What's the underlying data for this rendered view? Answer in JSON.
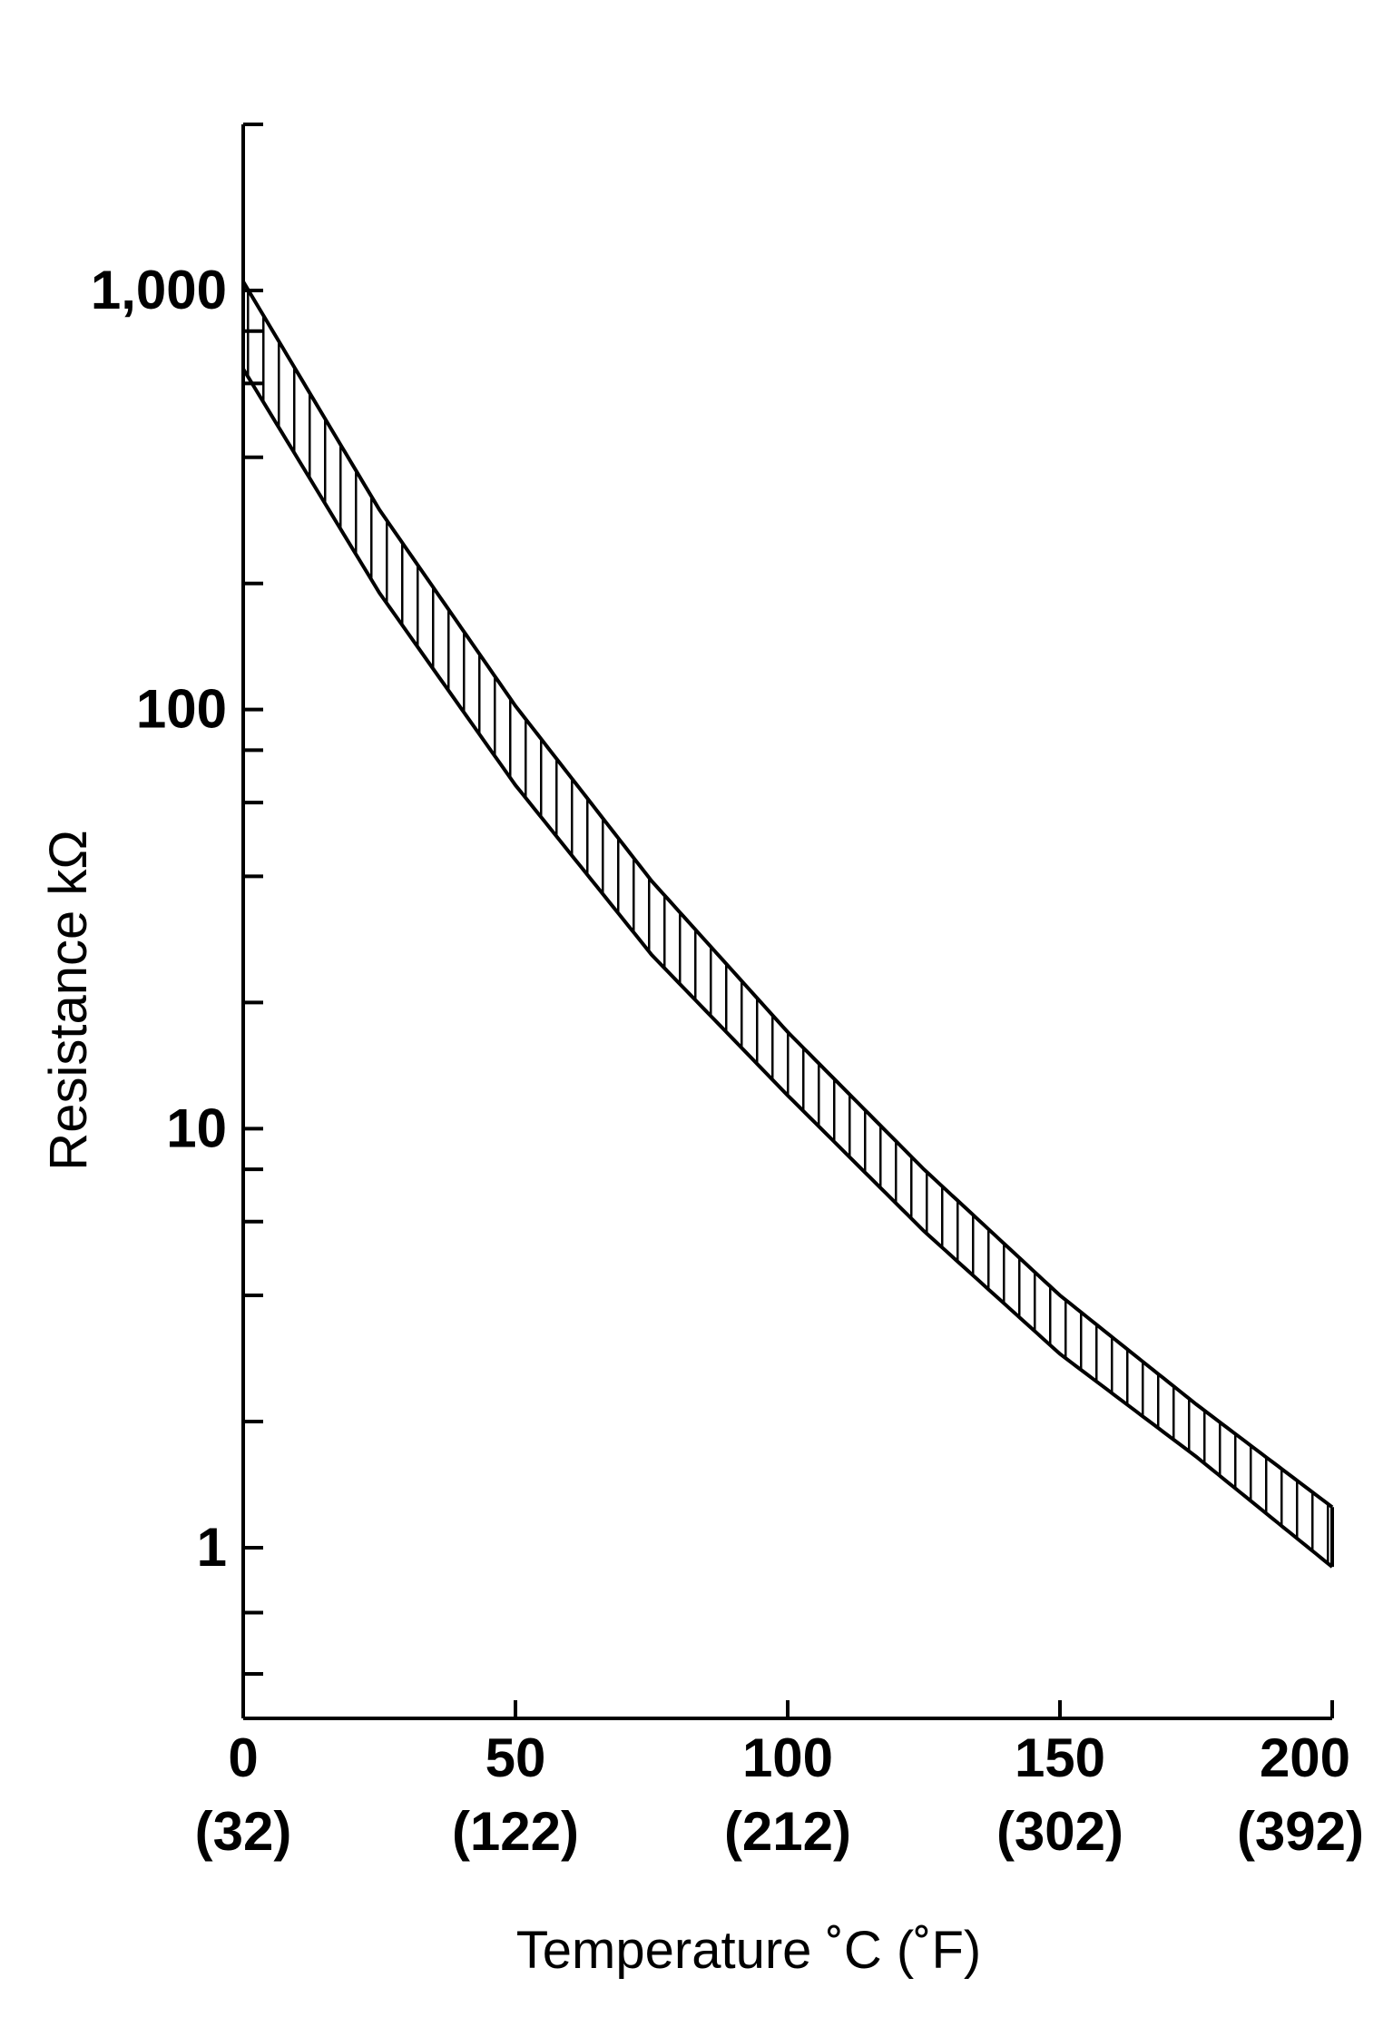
{
  "chart_data": {
    "type": "area",
    "title": "",
    "xlabel": "Temperature ˚C  (˚F)",
    "ylabel": "Resistance kΩ",
    "xlim": [
      0,
      200
    ],
    "ylim": [
      0.3,
      3000
    ],
    "yscale": "log",
    "grid": false,
    "x_ticks": [
      {
        "value": 0,
        "label": "0",
        "sublabel": "(32)"
      },
      {
        "value": 50,
        "label": "50",
        "sublabel": "(122)"
      },
      {
        "value": 100,
        "label": "100",
        "sublabel": "(212)"
      },
      {
        "value": 150,
        "label": "150",
        "sublabel": "(302)"
      },
      {
        "value": 200,
        "label": "200",
        "sublabel": "(392)"
      }
    ],
    "y_ticks": [
      {
        "value": 1,
        "label": "1"
      },
      {
        "value": 10,
        "label": "10"
      },
      {
        "value": 100,
        "label": "100"
      },
      {
        "value": 1000,
        "label": "1,000"
      }
    ],
    "y_minor_ticks": [
      0.5,
      0.7,
      2,
      4,
      6,
      8,
      20,
      40,
      60,
      80,
      200,
      400,
      600,
      800
    ],
    "fill_pattern": "vertical-hatch",
    "series": [
      {
        "name": "",
        "x": [
          0,
          25,
          50,
          75,
          100,
          125,
          150,
          175,
          200
        ],
        "values": [
          1050,
          300,
          102,
          39,
          17,
          8.0,
          4.0,
          2.2,
          1.25
        ]
      },
      {
        "name": "",
        "x": [
          0,
          25,
          50,
          75,
          100,
          125,
          150,
          175,
          200
        ],
        "values": [
          650,
          190,
          66,
          26,
          12,
          5.7,
          2.9,
          1.65,
          0.9
        ]
      }
    ]
  }
}
